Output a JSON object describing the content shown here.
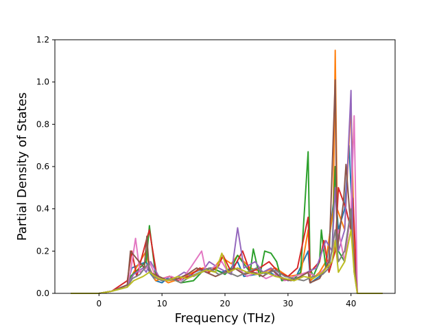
{
  "chart_data": {
    "type": "line",
    "xlabel": "Frequency (THz)",
    "ylabel": "Partial Density of States",
    "xlim": [
      -7,
      47
    ],
    "ylim": [
      0,
      1.2
    ],
    "x_ticks": [
      "0",
      "10",
      "20",
      "30",
      "40"
    ],
    "y_ticks": [
      "0.0",
      "0.2",
      "0.4",
      "0.6",
      "0.8",
      "1.0",
      "1.2"
    ],
    "x_tick_values": [
      0,
      10,
      20,
      30,
      40
    ],
    "y_tick_values": [
      0,
      0.2,
      0.4,
      0.6,
      0.8,
      1.0,
      1.2
    ],
    "grid": false,
    "legend": "none",
    "series": [
      {
        "color": "#1f77b4",
        "x": [
          -4.5,
          0,
          2,
          4.5,
          5.2,
          7.5,
          8,
          9,
          10,
          11.2,
          13,
          14.3,
          16,
          17.8,
          19.5,
          21,
          22,
          23,
          25,
          27,
          29,
          31,
          33.2,
          33.6,
          35,
          36,
          37.5,
          38,
          39,
          39.7,
          40,
          40.5,
          41,
          45
        ],
        "y": [
          0,
          0,
          0.01,
          0.04,
          0.12,
          0.15,
          0.1,
          0.06,
          0.05,
          0.08,
          0.06,
          0.09,
          0.11,
          0.12,
          0.1,
          0.12,
          0.15,
          0.08,
          0.09,
          0.1,
          0.07,
          0.06,
          0.2,
          0.05,
          0.08,
          0.12,
          0.5,
          0.3,
          0.4,
          0.7,
          0.5,
          0.2,
          0,
          0
        ]
      },
      {
        "color": "#ff7f0e",
        "x": [
          -4.5,
          0,
          2,
          4.5,
          5.5,
          7.5,
          8,
          9,
          10,
          11,
          13,
          15,
          16.5,
          18,
          19.5,
          21,
          22,
          24,
          26,
          28,
          30,
          32,
          33.2,
          33.6,
          35,
          36,
          37.2,
          37.5,
          37.8,
          39,
          40,
          40.5,
          41,
          45
        ],
        "y": [
          0,
          0,
          0.01,
          0.03,
          0.1,
          0.2,
          0.12,
          0.06,
          0.07,
          0.05,
          0.07,
          0.1,
          0.12,
          0.11,
          0.17,
          0.14,
          0.18,
          0.12,
          0.1,
          0.12,
          0.08,
          0.09,
          0.3,
          0.06,
          0.1,
          0.15,
          0.4,
          1.15,
          0.4,
          0.3,
          0.9,
          0.25,
          0,
          0
        ]
      },
      {
        "color": "#2ca02c",
        "x": [
          -4.5,
          0,
          2,
          4.5,
          5,
          7.5,
          8,
          9,
          10,
          11.5,
          13,
          15,
          16.3,
          18,
          20,
          21,
          22,
          24,
          24.5,
          25.5,
          26.3,
          27.3,
          28.2,
          29,
          31,
          32,
          33.2,
          33.5,
          34,
          35,
          35.3,
          36,
          37,
          37.5,
          38,
          39,
          40,
          40.5,
          41,
          45
        ],
        "y": [
          0,
          0,
          0.01,
          0.03,
          0.08,
          0.15,
          0.32,
          0.08,
          0.06,
          0.07,
          0.05,
          0.06,
          0.1,
          0.12,
          0.09,
          0.12,
          0.18,
          0.1,
          0.21,
          0.08,
          0.2,
          0.19,
          0.15,
          0.06,
          0.07,
          0.1,
          0.67,
          0.12,
          0.08,
          0.15,
          0.3,
          0.12,
          0.2,
          0.6,
          0.2,
          0.15,
          0.4,
          0.15,
          0,
          0
        ]
      },
      {
        "color": "#d62728",
        "x": [
          -4.5,
          0,
          2,
          4.5,
          5.2,
          6,
          7.5,
          8,
          9.2,
          10,
          11.2,
          12.5,
          14.3,
          16,
          17.5,
          19,
          19.7,
          21,
          22.8,
          24,
          25.5,
          27,
          28.5,
          30,
          31.5,
          33.2,
          33.5,
          35,
          35.7,
          36.5,
          37.5,
          38,
          39.2,
          40,
          40.3,
          41,
          45
        ],
        "y": [
          0,
          0,
          0.01,
          0.06,
          0.2,
          0.08,
          0.25,
          0.3,
          0.08,
          0.07,
          0.08,
          0.06,
          0.08,
          0.12,
          0.1,
          0.13,
          0.18,
          0.1,
          0.2,
          0.1,
          0.12,
          0.15,
          0.1,
          0.08,
          0.12,
          0.36,
          0.1,
          0.15,
          0.25,
          0.1,
          0.2,
          0.5,
          0.4,
          0.3,
          0.45,
          0,
          0
        ]
      },
      {
        "color": "#9467bd",
        "x": [
          -4.5,
          0,
          2,
          4.5,
          5.5,
          7,
          7.5,
          8.2,
          9.5,
          10.5,
          12,
          13.5,
          15,
          16.3,
          17.5,
          19,
          21,
          22,
          23,
          24.8,
          26,
          27.3,
          28.8,
          30,
          31.5,
          33,
          34.5,
          36,
          37,
          37.5,
          38,
          39,
          40,
          40.3,
          41,
          45
        ],
        "y": [
          0,
          0,
          0.01,
          0.04,
          0.09,
          0.12,
          0.1,
          0.15,
          0.08,
          0.06,
          0.07,
          0.1,
          0.08,
          0.1,
          0.15,
          0.12,
          0.09,
          0.31,
          0.12,
          0.15,
          0.1,
          0.12,
          0.08,
          0.06,
          0.07,
          0.1,
          0.12,
          0.25,
          0.2,
          0.5,
          0.2,
          0.3,
          0.96,
          0.2,
          0,
          0
        ]
      },
      {
        "color": "#e377c2",
        "x": [
          -4.5,
          0,
          2,
          4.5,
          5,
          5.8,
          6.5,
          7.5,
          8,
          9,
          10,
          11.5,
          13,
          14.5,
          16.3,
          17,
          18,
          19.5,
          20.5,
          22,
          23.5,
          25,
          26.5,
          28,
          29.5,
          31,
          33,
          34.5,
          36,
          37,
          38,
          39,
          40,
          40.5,
          41,
          45
        ],
        "y": [
          0,
          0,
          0.01,
          0.04,
          0.1,
          0.26,
          0.1,
          0.12,
          0.15,
          0.08,
          0.07,
          0.08,
          0.06,
          0.12,
          0.2,
          0.1,
          0.12,
          0.15,
          0.1,
          0.12,
          0.08,
          0.1,
          0.07,
          0.09,
          0.06,
          0.08,
          0.1,
          0.08,
          0.12,
          0.2,
          0.3,
          0.15,
          0.4,
          0.84,
          0,
          0
        ]
      },
      {
        "color": "#8c564b",
        "x": [
          -4.5,
          0,
          2,
          4.5,
          5,
          7.2,
          7.6,
          8,
          9.5,
          11,
          12.5,
          14,
          15.5,
          17,
          18.5,
          20,
          21.5,
          23,
          24.5,
          26,
          27.5,
          29,
          30.5,
          32,
          33.2,
          33.5,
          35,
          36.5,
          37.5,
          37.8,
          38.8,
          39.2,
          40,
          40.4,
          41,
          45
        ],
        "y": [
          0,
          0,
          0.01,
          0.04,
          0.2,
          0.12,
          0.27,
          0.1,
          0.08,
          0.06,
          0.07,
          0.09,
          0.12,
          0.1,
          0.08,
          0.1,
          0.12,
          0.09,
          0.1,
          0.08,
          0.11,
          0.07,
          0.06,
          0.08,
          0.1,
          0.05,
          0.07,
          0.15,
          1.01,
          0.2,
          0.43,
          0.61,
          0.3,
          0.2,
          0,
          0
        ]
      },
      {
        "color": "#7f7f7f",
        "x": [
          -4.5,
          0,
          2,
          4.5,
          5.3,
          6.5,
          7.8,
          8.5,
          10,
          11.5,
          13,
          14.5,
          16,
          17.5,
          19,
          20.5,
          22,
          23.5,
          25,
          26.5,
          28,
          29.5,
          31,
          32.5,
          34,
          35.5,
          36.5,
          37.5,
          38,
          39,
          40,
          40.5,
          41,
          45
        ],
        "y": [
          0,
          0,
          0.01,
          0.03,
          0.07,
          0.09,
          0.14,
          0.08,
          0.06,
          0.07,
          0.05,
          0.08,
          0.1,
          0.12,
          0.09,
          0.1,
          0.08,
          0.1,
          0.12,
          0.09,
          0.11,
          0.08,
          0.07,
          0.06,
          0.08,
          0.09,
          0.12,
          0.3,
          0.15,
          0.2,
          0.4,
          0.1,
          0,
          0
        ]
      },
      {
        "color": "#bcbd22",
        "x": [
          -4.5,
          0,
          2,
          4.5,
          5.5,
          7,
          8,
          9.5,
          11,
          12.5,
          14,
          15.5,
          17,
          18.5,
          19.5,
          20.5,
          22,
          23.5,
          25,
          26.5,
          28,
          29.5,
          31,
          32.5,
          34,
          35.5,
          37,
          37.5,
          38,
          39,
          40,
          40.5,
          41,
          45
        ],
        "y": [
          0,
          0,
          0.01,
          0.03,
          0.06,
          0.08,
          0.1,
          0.07,
          0.06,
          0.08,
          0.07,
          0.09,
          0.11,
          0.1,
          0.19,
          0.1,
          0.12,
          0.1,
          0.09,
          0.1,
          0.08,
          0.07,
          0.06,
          0.08,
          0.07,
          0.1,
          0.15,
          0.25,
          0.1,
          0.15,
          0.3,
          0.1,
          0,
          0
        ]
      }
    ]
  }
}
